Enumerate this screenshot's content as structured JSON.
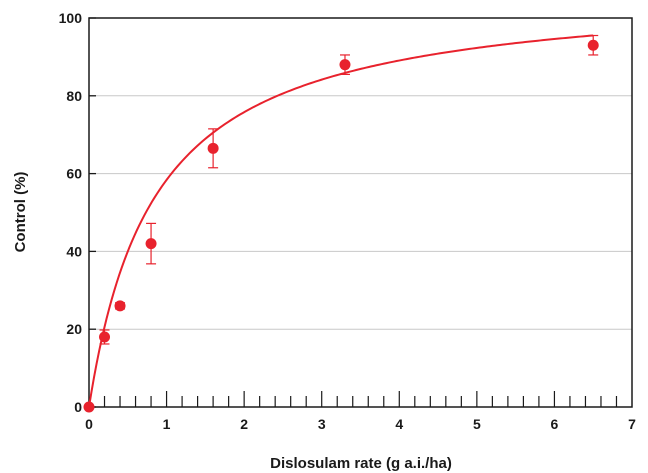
{
  "chart_data": {
    "type": "scatter",
    "title": "",
    "xlabel": "Dislosulam rate (g a.i./ha)",
    "ylabel": "Control (%)",
    "xlim": [
      0,
      7
    ],
    "ylim": [
      0,
      100
    ],
    "x_ticks": [
      0,
      1,
      2,
      3,
      4,
      5,
      6,
      7
    ],
    "y_ticks": [
      0,
      20,
      40,
      60,
      80,
      100
    ],
    "x_minor_step": 0.2,
    "grid": "horizontal",
    "colors": {
      "points": "#e8222d",
      "curve": "#e8222d",
      "axis": "#1a1a1a",
      "grid": "#c8c8c8"
    },
    "series": [
      {
        "x": [
          0,
          0.2,
          0.4,
          0.8,
          1.6,
          3.3,
          6.5
        ],
        "y": [
          0,
          18,
          26,
          42,
          66.5,
          88,
          93
        ],
        "error": [
          0,
          1.8,
          0.8,
          5.2,
          5.0,
          2.5,
          2.5
        ]
      }
    ],
    "fit_curve": {
      "model": "hyperbolic",
      "a": 108,
      "b": 0.85
    }
  }
}
